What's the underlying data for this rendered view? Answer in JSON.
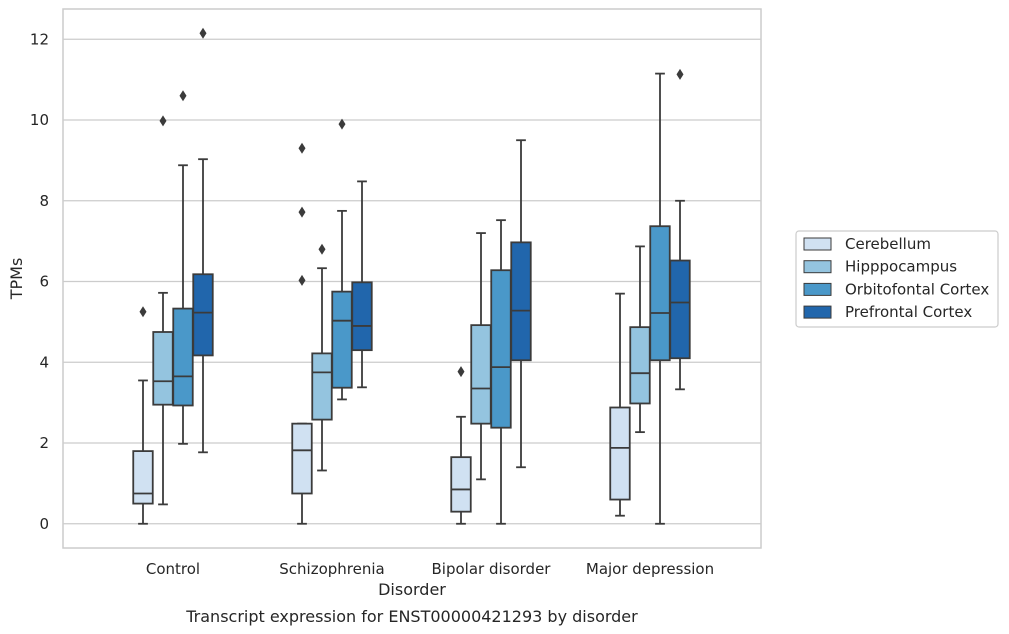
{
  "caption": "Transcript expression for ENST00000421293 by disorder",
  "chart_data": {
    "type": "box",
    "xlabel": "Disorder",
    "ylabel": "TPMs",
    "ylim": [
      -0.6,
      12.75
    ],
    "yticks": [
      0,
      2,
      4,
      6,
      8,
      10,
      12
    ],
    "grid": "horizontal",
    "legend_position": "right",
    "categories": [
      "Control",
      "Schizophrenia",
      "Bipolar disorder",
      "Major depression"
    ],
    "series": [
      {
        "name": "Cerebellum",
        "color": "#d0e1f2",
        "boxes": [
          {
            "whisker_low": 0.0,
            "q1": 0.5,
            "median": 0.75,
            "q3": 1.8,
            "whisker_high": 3.55,
            "outliers": [
              5.25
            ]
          },
          {
            "whisker_low": 0.0,
            "q1": 0.75,
            "median": 1.82,
            "q3": 2.48,
            "whisker_high": 2.48,
            "outliers": [
              9.3,
              7.72,
              6.03
            ]
          },
          {
            "whisker_low": 0.0,
            "q1": 0.3,
            "median": 0.85,
            "q3": 1.65,
            "whisker_high": 2.65,
            "outliers": [
              3.77
            ]
          },
          {
            "whisker_low": 0.2,
            "q1": 0.6,
            "median": 1.88,
            "q3": 2.88,
            "whisker_high": 5.7,
            "outliers": []
          }
        ]
      },
      {
        "name": "Hipppocampus",
        "color": "#94c4df",
        "boxes": [
          {
            "whisker_low": 0.48,
            "q1": 2.95,
            "median": 3.53,
            "q3": 4.75,
            "whisker_high": 5.72,
            "outliers": [
              9.98
            ]
          },
          {
            "whisker_low": 1.32,
            "q1": 2.58,
            "median": 3.75,
            "q3": 4.22,
            "whisker_high": 6.33,
            "outliers": [
              6.8
            ]
          },
          {
            "whisker_low": 1.1,
            "q1": 2.48,
            "median": 3.35,
            "q3": 4.92,
            "whisker_high": 7.2,
            "outliers": []
          },
          {
            "whisker_low": 2.27,
            "q1": 2.98,
            "median": 3.73,
            "q3": 4.87,
            "whisker_high": 6.87,
            "outliers": []
          }
        ]
      },
      {
        "name": "Orbitofontal Cortex",
        "color": "#4a98c9",
        "boxes": [
          {
            "whisker_low": 1.98,
            "q1": 2.93,
            "median": 3.65,
            "q3": 5.33,
            "whisker_high": 8.88,
            "outliers": [
              10.6
            ]
          },
          {
            "whisker_low": 3.08,
            "q1": 3.37,
            "median": 5.03,
            "q3": 5.75,
            "whisker_high": 7.75,
            "outliers": [
              9.9
            ]
          },
          {
            "whisker_low": 0.0,
            "q1": 2.38,
            "median": 3.88,
            "q3": 6.28,
            "whisker_high": 7.52,
            "outliers": []
          },
          {
            "whisker_low": 0.0,
            "q1": 4.05,
            "median": 5.22,
            "q3": 7.37,
            "whisker_high": 11.15,
            "outliers": []
          }
        ]
      },
      {
        "name": "Prefrontal Cortex",
        "color": "#2166ac",
        "boxes": [
          {
            "whisker_low": 1.77,
            "q1": 4.17,
            "median": 5.23,
            "q3": 6.18,
            "whisker_high": 9.03,
            "outliers": [
              12.15
            ]
          },
          {
            "whisker_low": 3.38,
            "q1": 4.3,
            "median": 4.9,
            "q3": 5.98,
            "whisker_high": 8.48,
            "outliers": []
          },
          {
            "whisker_low": 1.4,
            "q1": 4.05,
            "median": 5.28,
            "q3": 6.97,
            "whisker_high": 9.5,
            "outliers": []
          },
          {
            "whisker_low": 3.33,
            "q1": 4.1,
            "median": 5.48,
            "q3": 6.52,
            "whisker_high": 8.0,
            "outliers": [
              11.13
            ]
          }
        ]
      }
    ]
  }
}
